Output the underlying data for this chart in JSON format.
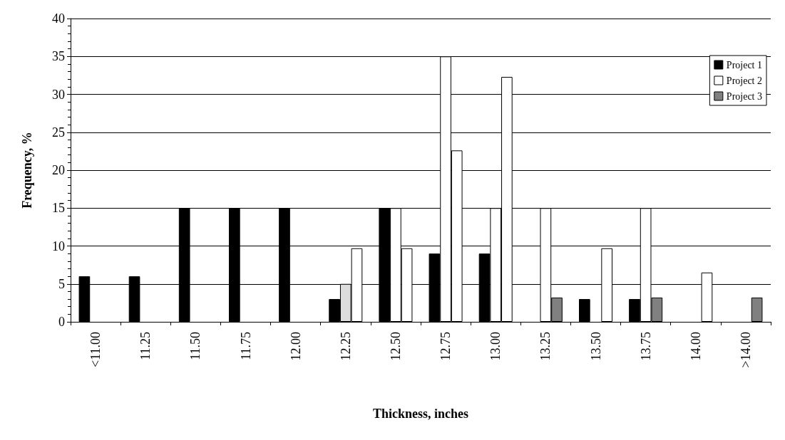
{
  "chart_data": {
    "type": "bar",
    "xlabel": "Thickness, inches",
    "ylabel": "Frequency, %",
    "categories": [
      "<11.00",
      "11.25",
      "11.50",
      "11.75",
      "12.00",
      "12.25",
      "12.50",
      "12.75",
      "13.00",
      "13.25",
      "13.50",
      "13.75",
      "14.00",
      ">14.00"
    ],
    "series": [
      {
        "name": "Project 1",
        "color": "#000000",
        "values": [
          6,
          6,
          15,
          15,
          15,
          3,
          15,
          9,
          9,
          null,
          3,
          3,
          null,
          null
        ]
      },
      {
        "name": "Project 2",
        "color": "#ffffff",
        "colors": [
          null,
          null,
          null,
          null,
          null,
          "#dddddd",
          "#ffffff",
          "#ffffff",
          "#ffffff",
          "#ffffff",
          null,
          "#ffffff",
          null,
          null
        ],
        "values": [
          null,
          null,
          null,
          null,
          null,
          5,
          15,
          35,
          15,
          15,
          null,
          15,
          null,
          null
        ]
      },
      {
        "name": "Project 3",
        "color": "#808080",
        "colors": [
          null,
          null,
          null,
          null,
          null,
          "#ffffff",
          "#ffffff",
          "#ffffff",
          "#ffffff",
          "#808080",
          "#ffffff",
          "#808080",
          "#ffffff",
          "#808080"
        ],
        "values": [
          null,
          null,
          null,
          null,
          null,
          9.7,
          9.7,
          22.6,
          32.3,
          3.2,
          9.7,
          3.2,
          6.5,
          3.2
        ]
      }
    ],
    "ylim": [
      0,
      40
    ],
    "yticks": [
      0,
      5,
      10,
      15,
      20,
      25,
      30,
      35,
      40
    ],
    "grid": "y",
    "legend": "top right"
  }
}
